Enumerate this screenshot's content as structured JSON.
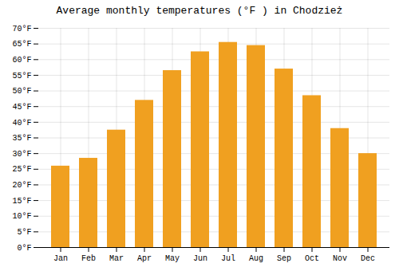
{
  "chart_data": {
    "type": "bar",
    "title": "Average monthly temperatures (°F ) in Chodzież",
    "categories": [
      "Jan",
      "Feb",
      "Mar",
      "Apr",
      "May",
      "Jun",
      "Jul",
      "Aug",
      "Sep",
      "Oct",
      "Nov",
      "Dec"
    ],
    "values": [
      26.0,
      28.5,
      37.5,
      47.0,
      56.5,
      62.5,
      65.5,
      64.5,
      57.0,
      48.5,
      38.0,
      30.0
    ],
    "color": "#F0A020",
    "ylim": [
      0,
      70
    ],
    "yticks": [
      {
        "value": 0,
        "label": "0°F"
      },
      {
        "value": 5,
        "label": "5°F"
      },
      {
        "value": 10,
        "label": "10°F"
      },
      {
        "value": 15,
        "label": "15°F"
      },
      {
        "value": 20,
        "label": "20°F"
      },
      {
        "value": 25,
        "label": "25°F"
      },
      {
        "value": 30,
        "label": "30°F"
      },
      {
        "value": 35,
        "label": "35°F"
      },
      {
        "value": 40,
        "label": "40°F"
      },
      {
        "value": 45,
        "label": "45°F"
      },
      {
        "value": 50,
        "label": "50°F"
      },
      {
        "value": 55,
        "label": "55°F"
      },
      {
        "value": 60,
        "label": "60°F"
      },
      {
        "value": 65,
        "label": "65°F"
      },
      {
        "value": 70,
        "label": "70°F"
      }
    ],
    "grid": true
  }
}
